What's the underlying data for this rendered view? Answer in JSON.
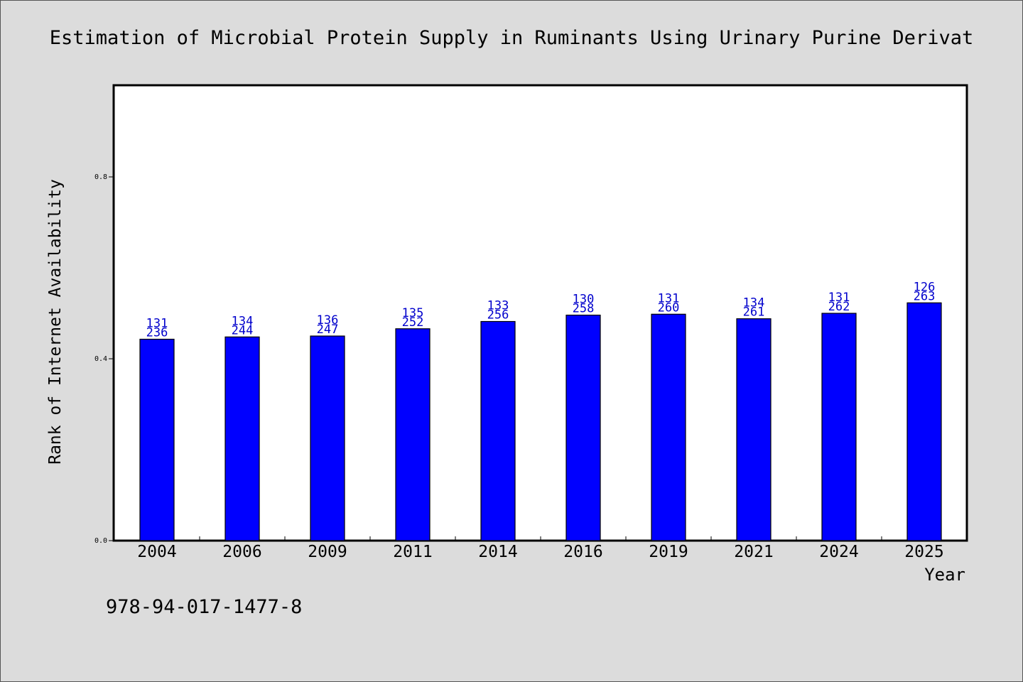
{
  "chart_data": {
    "type": "bar",
    "title": "Estimation of Microbial Protein Supply in Ruminants Using Urinary Purine Derivat",
    "xlabel": "Year",
    "ylabel": "Rank of Internet Availability",
    "ylim": [
      0.0,
      1.0
    ],
    "yticks": [
      "0.0",
      "0.4",
      "0.8"
    ],
    "categories": [
      "2004",
      "2006",
      "2009",
      "2011",
      "2014",
      "2016",
      "2019",
      "2021",
      "2024",
      "2025"
    ],
    "values": [
      0.443,
      0.448,
      0.45,
      0.466,
      0.482,
      0.496,
      0.498,
      0.488,
      0.5,
      0.523
    ],
    "labels_top": [
      "131",
      "134",
      "136",
      "135",
      "133",
      "130",
      "131",
      "134",
      "131",
      "126"
    ],
    "labels_bottom": [
      "236",
      "244",
      "247",
      "252",
      "256",
      "258",
      "260",
      "261",
      "262",
      "263"
    ],
    "bar_color": "#0000ff",
    "label_color": "#0000cc",
    "grid": false,
    "legend": "none"
  },
  "footer": {
    "isbn": "978-94-017-1477-8"
  }
}
